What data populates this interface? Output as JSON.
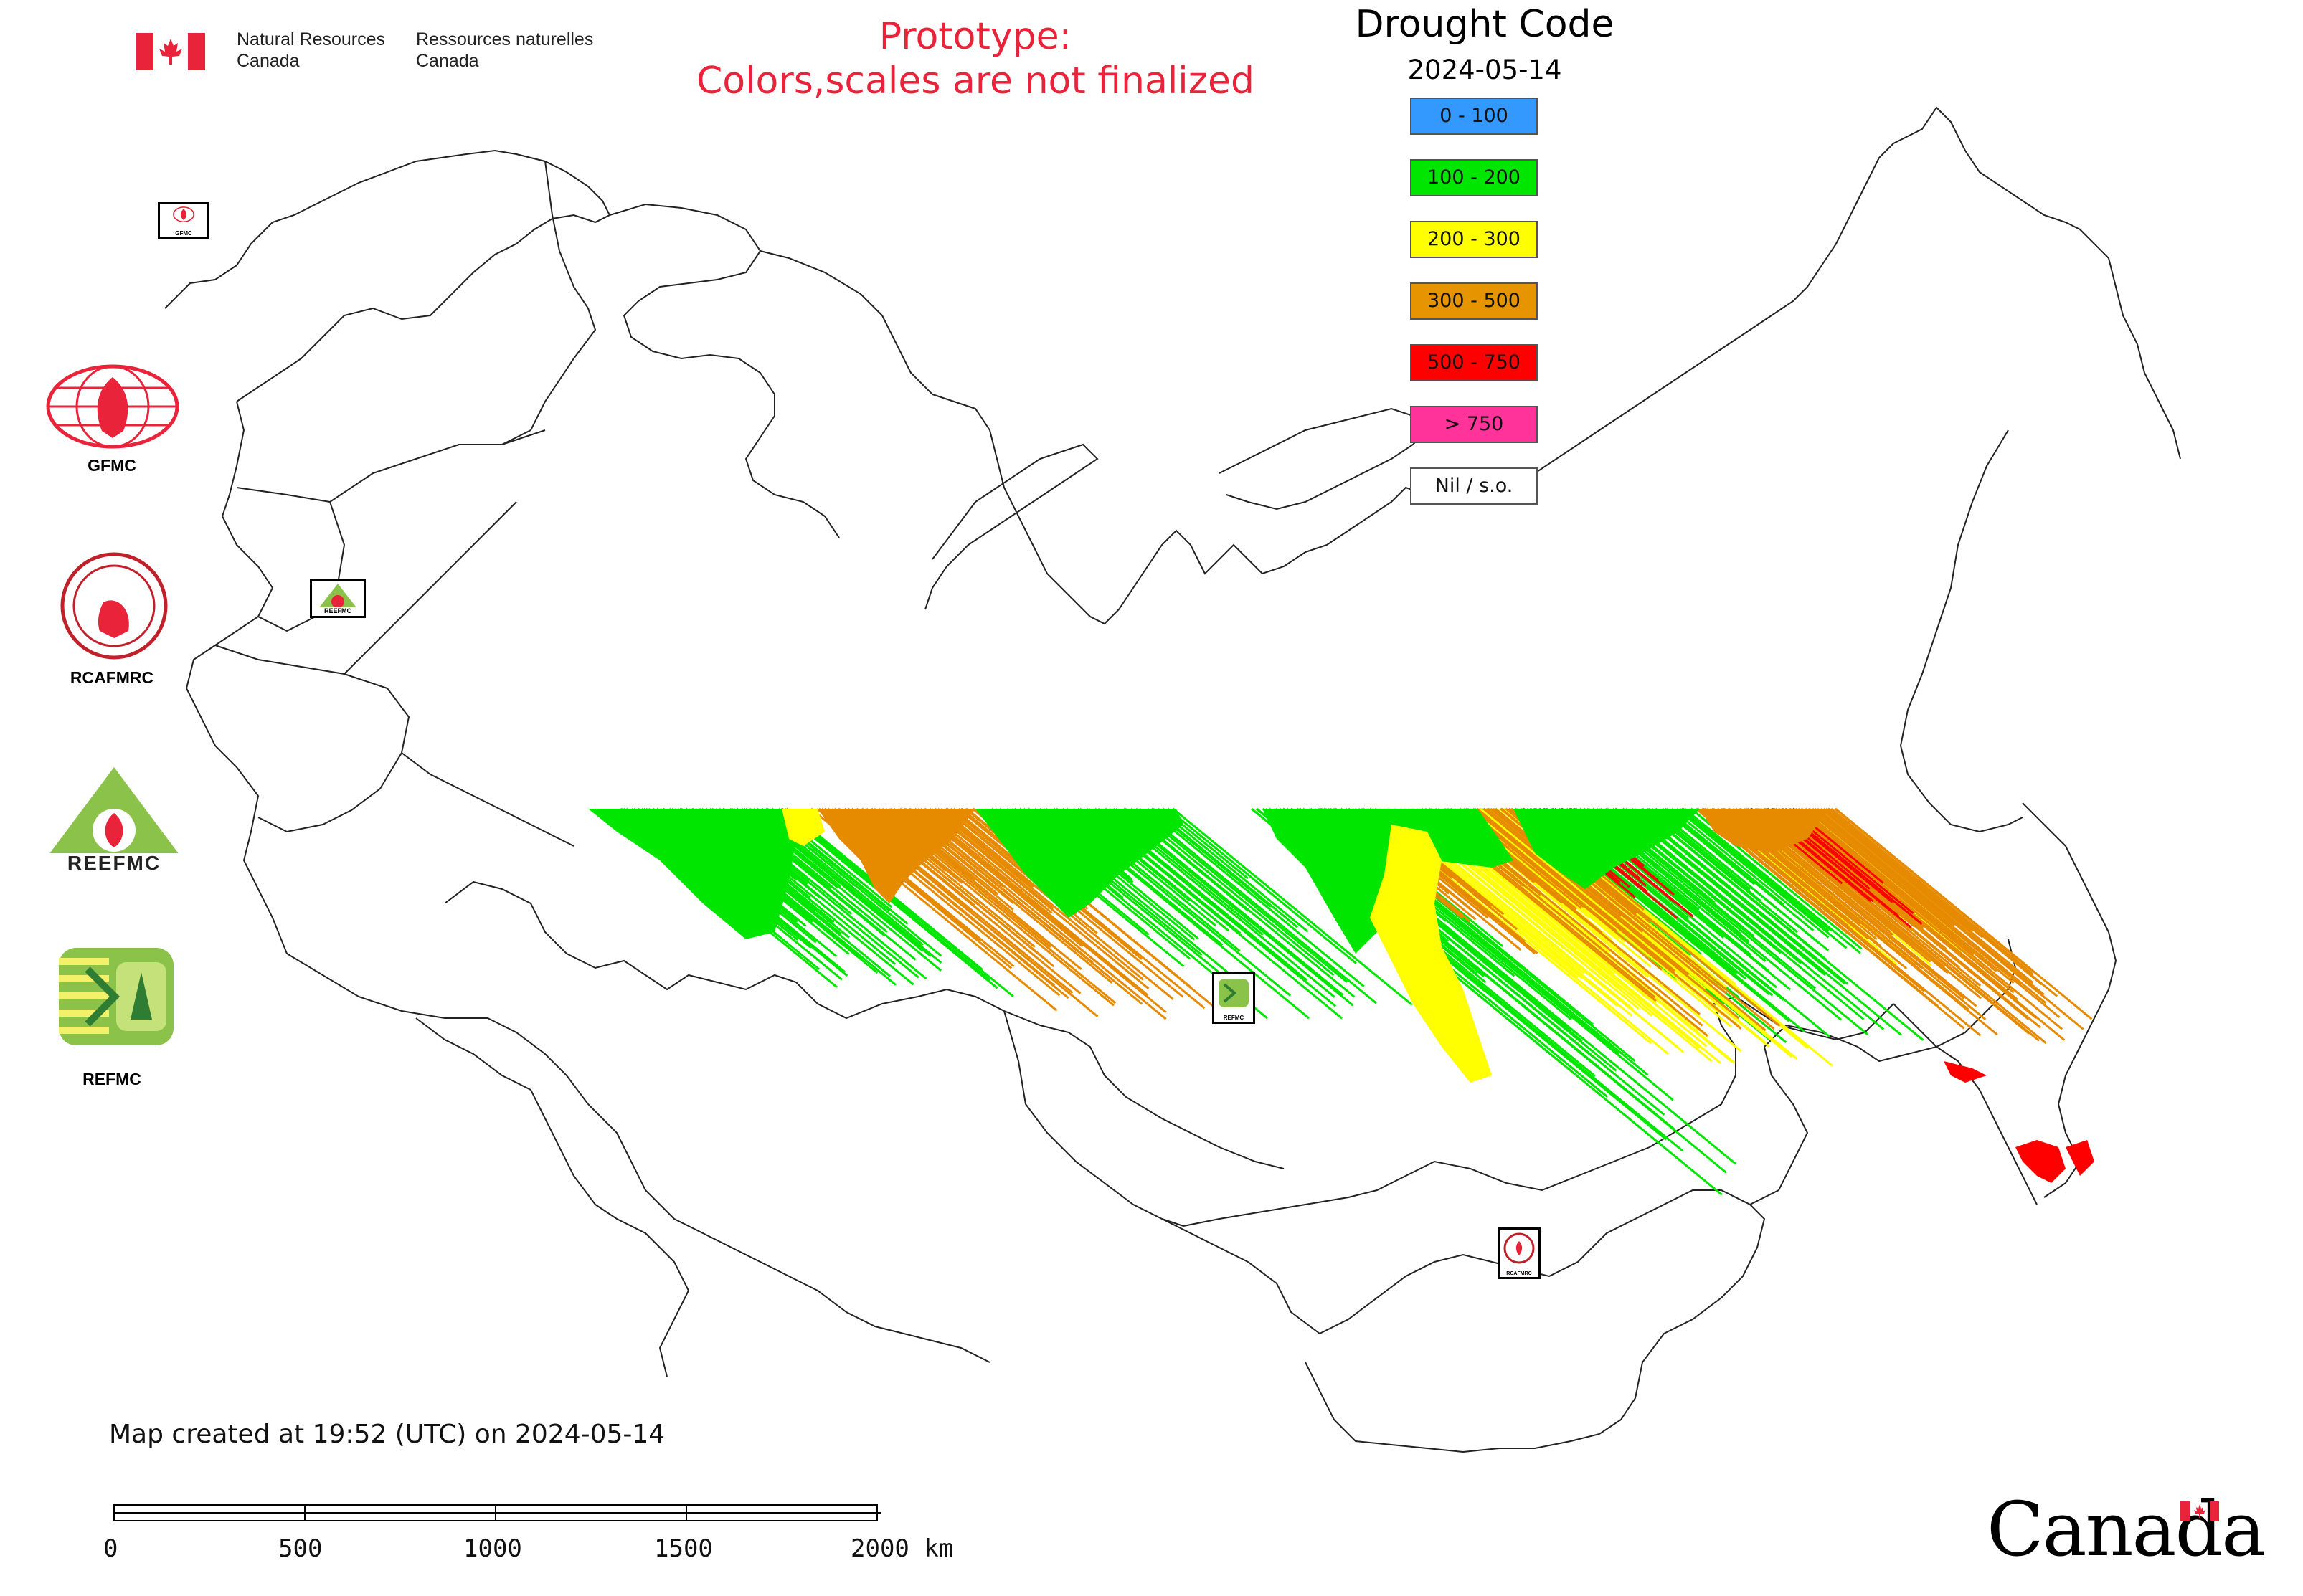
{
  "header": {
    "nrcan_en": [
      "Natural Resources",
      "Canada"
    ],
    "nrcan_fr": [
      "Ressources naturelles",
      "Canada"
    ],
    "prototype_line1": "Prototype:",
    "prototype_line2": "Colors,scales are not finalized"
  },
  "legend": {
    "title": "Drought Code",
    "date": "2024-05-14",
    "items": [
      {
        "label": "0 - 100",
        "color": "#3399ff"
      },
      {
        "label": "100 - 200",
        "color": "#00e600"
      },
      {
        "label": "200 - 300",
        "color": "#ffff00"
      },
      {
        "label": "300 - 500",
        "color": "#e69500"
      },
      {
        "label": "500 - 750",
        "color": "#ff0000"
      },
      {
        "label": "> 750",
        "color": "#ff3399"
      },
      {
        "label": "Nil / s.o.",
        "color": "#ffffff"
      }
    ]
  },
  "agencies": [
    {
      "name": "GFMC"
    },
    {
      "name": "RCAFMRC"
    },
    {
      "name": "REEFMC"
    },
    {
      "name": "REFMC"
    }
  ],
  "map_markers": {
    "gfmc": "GFMC",
    "reefmc": "REEFMC",
    "refmc": "REFMC",
    "rcafmrc": "RCAFMRC"
  },
  "footer": {
    "map_created": "Map created at 19:52 (UTC) on 2024-05-14",
    "scale_labels": [
      "0",
      "500",
      "1000",
      "1500",
      "2000 km"
    ],
    "wordmark": "Canada"
  }
}
